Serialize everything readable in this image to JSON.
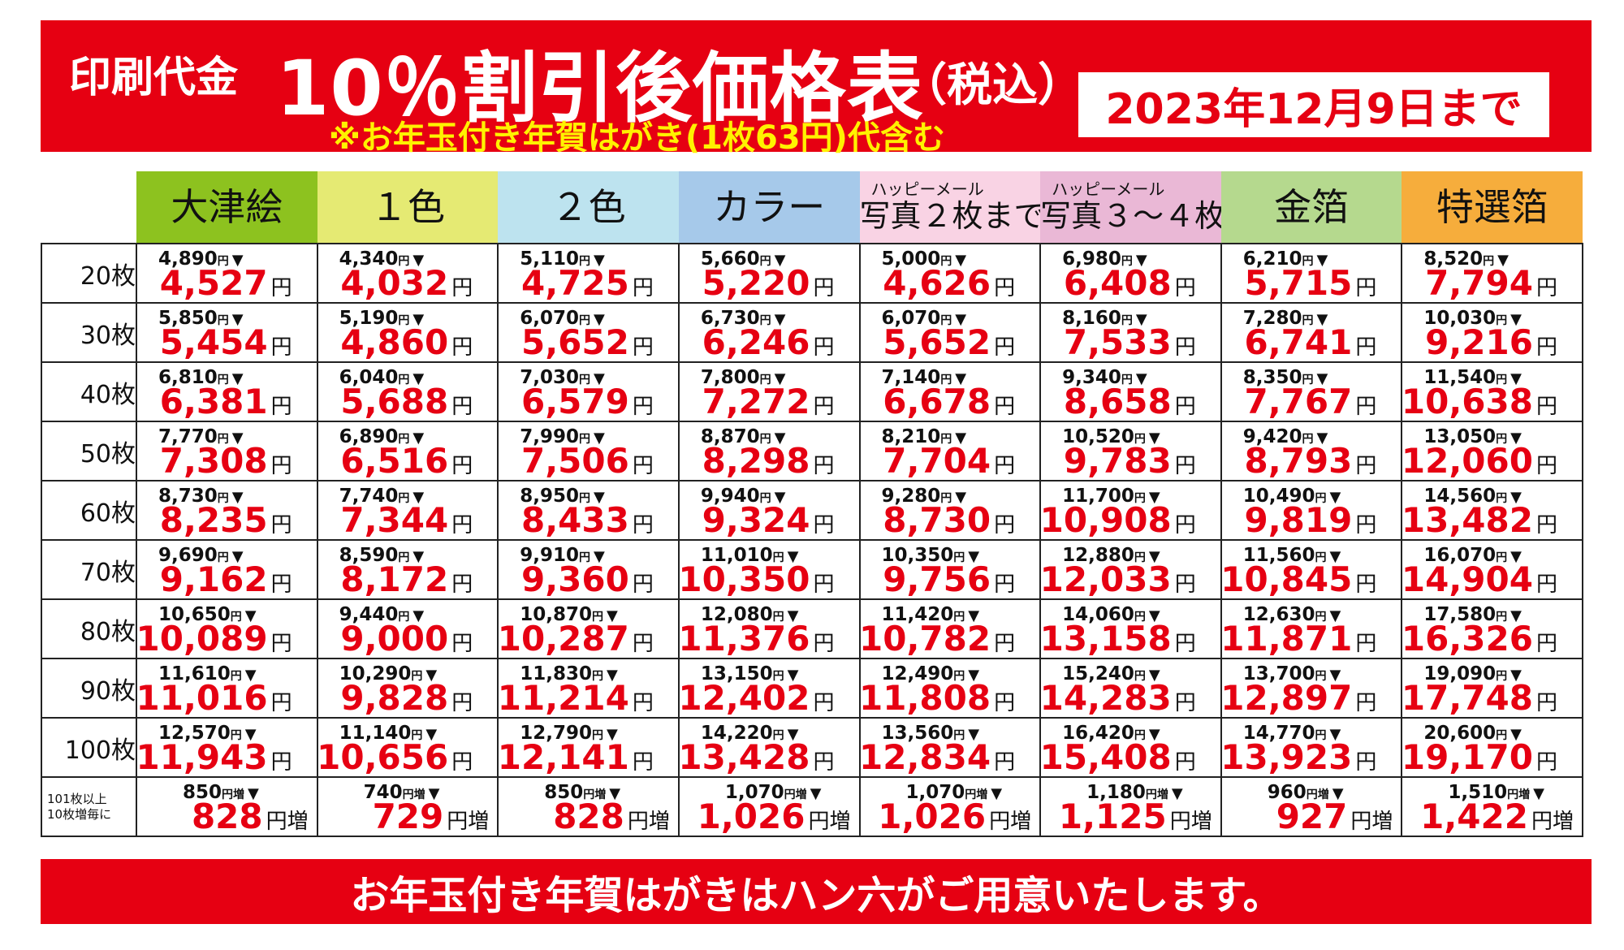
{
  "banner": {
    "lead": "印刷代金",
    "title": "10％割引後価格表",
    "tax": "（税込）",
    "note": "※お年玉付き年賀はがき(1枚63円)代含む",
    "deadline": "2023年12月9日まで"
  },
  "columns": [
    {
      "label": "大津絵",
      "sub": "",
      "color": "#8dc21f"
    },
    {
      "label": "１色",
      "sub": "",
      "color": "#e5ea73"
    },
    {
      "label": "２色",
      "sub": "",
      "color": "#bde3ef"
    },
    {
      "label": "カラー",
      "sub": "",
      "color": "#a6c9ea"
    },
    {
      "label": "写真２枚まで",
      "sub": "ハッピーメール",
      "color": "#f9d3e4"
    },
    {
      "label": "写真３～４枚",
      "sub": "ハッピーメール",
      "color": "#eab8d6"
    },
    {
      "label": "金箔",
      "sub": "",
      "color": "#b5d98e"
    },
    {
      "label": "特選箔",
      "sub": "",
      "color": "#f6ad3c"
    }
  ],
  "units": {
    "yen": "円",
    "yen_plus": "円増",
    "triangle": "▼"
  },
  "rows": [
    {
      "label": "20枚",
      "cells": [
        [
          "4,890",
          "4,527"
        ],
        [
          "4,340",
          "4,032"
        ],
        [
          "5,110",
          "4,725"
        ],
        [
          "5,660",
          "5,220"
        ],
        [
          "5,000",
          "4,626"
        ],
        [
          "6,980",
          "6,408"
        ],
        [
          "6,210",
          "5,715"
        ],
        [
          "8,520",
          "7,794"
        ]
      ]
    },
    {
      "label": "30枚",
      "cells": [
        [
          "5,850",
          "5,454"
        ],
        [
          "5,190",
          "4,860"
        ],
        [
          "6,070",
          "5,652"
        ],
        [
          "6,730",
          "6,246"
        ],
        [
          "6,070",
          "5,652"
        ],
        [
          "8,160",
          "7,533"
        ],
        [
          "7,280",
          "6,741"
        ],
        [
          "10,030",
          "9,216"
        ]
      ]
    },
    {
      "label": "40枚",
      "cells": [
        [
          "6,810",
          "6,381"
        ],
        [
          "6,040",
          "5,688"
        ],
        [
          "7,030",
          "6,579"
        ],
        [
          "7,800",
          "7,272"
        ],
        [
          "7,140",
          "6,678"
        ],
        [
          "9,340",
          "8,658"
        ],
        [
          "8,350",
          "7,767"
        ],
        [
          "11,540",
          "10,638"
        ]
      ]
    },
    {
      "label": "50枚",
      "cells": [
        [
          "7,770",
          "7,308"
        ],
        [
          "6,890",
          "6,516"
        ],
        [
          "7,990",
          "7,506"
        ],
        [
          "8,870",
          "8,298"
        ],
        [
          "8,210",
          "7,704"
        ],
        [
          "10,520",
          "9,783"
        ],
        [
          "9,420",
          "8,793"
        ],
        [
          "13,050",
          "12,060"
        ]
      ]
    },
    {
      "label": "60枚",
      "cells": [
        [
          "8,730",
          "8,235"
        ],
        [
          "7,740",
          "7,344"
        ],
        [
          "8,950",
          "8,433"
        ],
        [
          "9,940",
          "9,324"
        ],
        [
          "9,280",
          "8,730"
        ],
        [
          "11,700",
          "10,908"
        ],
        [
          "10,490",
          "9,819"
        ],
        [
          "14,560",
          "13,482"
        ]
      ]
    },
    {
      "label": "70枚",
      "cells": [
        [
          "9,690",
          "9,162"
        ],
        [
          "8,590",
          "8,172"
        ],
        [
          "9,910",
          "9,360"
        ],
        [
          "11,010",
          "10,350"
        ],
        [
          "10,350",
          "9,756"
        ],
        [
          "12,880",
          "12,033"
        ],
        [
          "11,560",
          "10,845"
        ],
        [
          "16,070",
          "14,904"
        ]
      ]
    },
    {
      "label": "80枚",
      "cells": [
        [
          "10,650",
          "10,089"
        ],
        [
          "9,440",
          "9,000"
        ],
        [
          "10,870",
          "10,287"
        ],
        [
          "12,080",
          "11,376"
        ],
        [
          "11,420",
          "10,782"
        ],
        [
          "14,060",
          "13,158"
        ],
        [
          "12,630",
          "11,871"
        ],
        [
          "17,580",
          "16,326"
        ]
      ]
    },
    {
      "label": "90枚",
      "cells": [
        [
          "11,610",
          "11,016"
        ],
        [
          "10,290",
          "9,828"
        ],
        [
          "11,830",
          "11,214"
        ],
        [
          "13,150",
          "12,402"
        ],
        [
          "12,490",
          "11,808"
        ],
        [
          "15,240",
          "14,283"
        ],
        [
          "13,700",
          "12,897"
        ],
        [
          "19,090",
          "17,748"
        ]
      ]
    },
    {
      "label": "100枚",
      "cells": [
        [
          "12,570",
          "11,943"
        ],
        [
          "11,140",
          "10,656"
        ],
        [
          "12,790",
          "12,141"
        ],
        [
          "14,220",
          "13,428"
        ],
        [
          "13,560",
          "12,834"
        ],
        [
          "16,420",
          "15,408"
        ],
        [
          "14,770",
          "13,923"
        ],
        [
          "20,600",
          "19,170"
        ]
      ]
    }
  ],
  "extra_row": {
    "label_line1": "101枚以上",
    "label_line2": "10枚増毎に",
    "cells": [
      [
        "850",
        "828"
      ],
      [
        "740",
        "729"
      ],
      [
        "850",
        "828"
      ],
      [
        "1,070",
        "1,026"
      ],
      [
        "1,070",
        "1,026"
      ],
      [
        "1,180",
        "1,125"
      ],
      [
        "960",
        "927"
      ],
      [
        "1,510",
        "1,422"
      ]
    ]
  },
  "footer": "お年玉付き年賀はがきはハン六がご用意いたします。"
}
